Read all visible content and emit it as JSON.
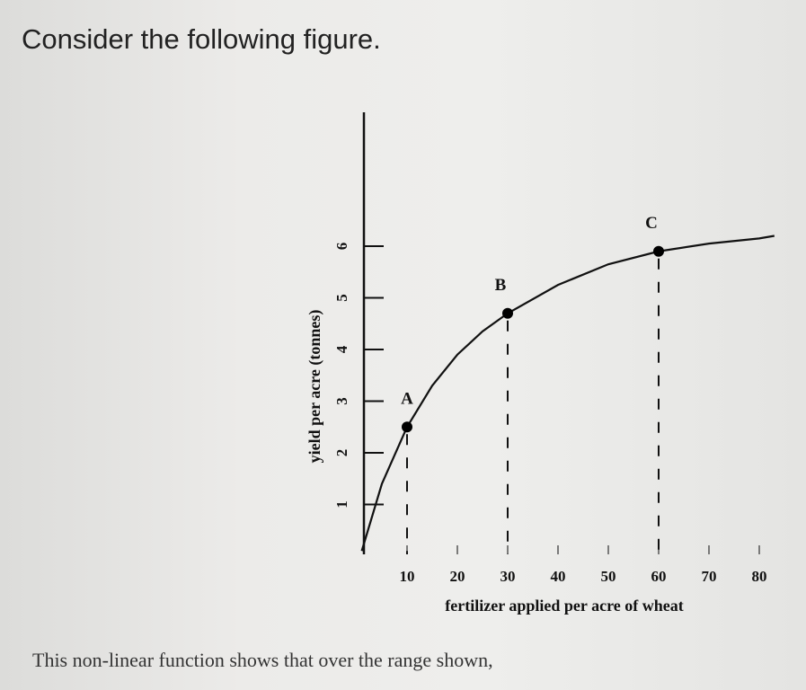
{
  "question": "Consider the following figure.",
  "footer": "This non-linear function shows that over the range shown,",
  "chart_data": {
    "type": "line",
    "x": [
      1,
      5,
      10,
      15,
      20,
      25,
      30,
      40,
      50,
      60,
      70,
      80,
      83
    ],
    "values": [
      0.1,
      1.4,
      2.5,
      3.3,
      3.9,
      4.35,
      4.7,
      5.25,
      5.65,
      5.9,
      6.05,
      6.15,
      6.2
    ],
    "color": "#111111",
    "points": [
      {
        "label": "A",
        "x": 10,
        "y": 2.5
      },
      {
        "label": "B",
        "x": 30,
        "y": 4.7
      },
      {
        "label": "C",
        "x": 60,
        "y": 5.9
      }
    ],
    "xlim": [
      0,
      84
    ],
    "xticks": [
      10,
      20,
      30,
      40,
      50,
      60,
      70,
      80
    ],
    "ylim": [
      0,
      8.5
    ],
    "yticks": [
      1,
      2,
      3,
      4,
      5,
      6
    ],
    "xlabel": "fertilizer applied per acre of wheat",
    "ylabel": "yield per acre (tonnes)"
  }
}
